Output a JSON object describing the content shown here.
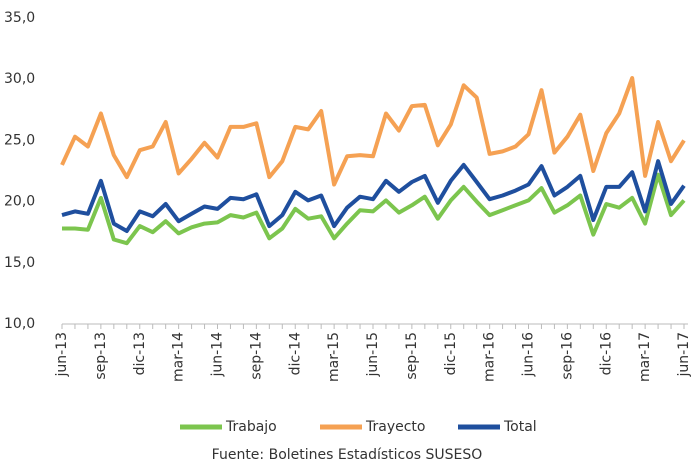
{
  "chart_data": {
    "type": "line",
    "categories": [
      "jun-13",
      null,
      null,
      "sep-13",
      null,
      null,
      "dic-13",
      null,
      null,
      "mar-14",
      null,
      null,
      "jun-14",
      null,
      null,
      "sep-14",
      null,
      null,
      "dic-14",
      null,
      null,
      "mar-15",
      null,
      null,
      "jun-15",
      null,
      null,
      "sep-15",
      null,
      null,
      "dic-15",
      null,
      null,
      "mar-16",
      null,
      null,
      "jun-16",
      null,
      null,
      "sep-16",
      null,
      null,
      "dic-16",
      null,
      null,
      "mar-17",
      null,
      null,
      "jun-17"
    ],
    "series": [
      {
        "name": "Trabajo",
        "color": "#7cc54e",
        "values": [
          17.8,
          17.8,
          17.7,
          20.3,
          16.9,
          16.6,
          18.0,
          17.5,
          18.4,
          17.4,
          17.9,
          18.2,
          18.3,
          18.9,
          18.7,
          19.1,
          17.0,
          17.8,
          19.4,
          18.6,
          18.8,
          17.0,
          18.2,
          19.3,
          19.2,
          20.1,
          19.1,
          19.7,
          20.4,
          18.6,
          20.1,
          21.2,
          20.0,
          18.9,
          19.3,
          19.7,
          20.1,
          21.1,
          19.1,
          19.7,
          20.5,
          17.3,
          19.8,
          19.5,
          20.3,
          18.2,
          22.2,
          18.9,
          20.1
        ]
      },
      {
        "name": "Trayecto",
        "color": "#f5a153",
        "values": [
          23.0,
          25.3,
          24.5,
          27.2,
          23.8,
          22.0,
          24.2,
          24.5,
          26.5,
          22.3,
          23.5,
          24.8,
          23.6,
          26.1,
          26.1,
          26.4,
          22.0,
          23.3,
          26.1,
          25.9,
          27.4,
          21.4,
          23.7,
          23.8,
          23.7,
          27.2,
          25.8,
          27.8,
          27.9,
          24.6,
          26.3,
          29.5,
          28.5,
          23.9,
          24.1,
          24.5,
          25.5,
          29.1,
          24.0,
          25.3,
          27.1,
          22.5,
          25.6,
          27.2,
          30.1,
          22.1,
          26.5,
          23.3,
          25.0
        ]
      },
      {
        "name": "Total",
        "color": "#1f4f9e",
        "values": [
          18.9,
          19.2,
          19.0,
          21.7,
          18.2,
          17.6,
          19.2,
          18.8,
          19.8,
          18.4,
          19.0,
          19.6,
          19.4,
          20.3,
          20.2,
          20.6,
          18.0,
          18.9,
          20.8,
          20.1,
          20.5,
          18.0,
          19.5,
          20.4,
          20.2,
          21.7,
          20.8,
          21.6,
          22.1,
          19.9,
          21.7,
          23.0,
          21.6,
          20.2,
          20.5,
          20.9,
          21.4,
          22.9,
          20.5,
          21.2,
          22.1,
          18.5,
          21.2,
          21.2,
          22.4,
          19.2,
          23.3,
          19.8,
          21.3
        ]
      }
    ],
    "ylim": [
      10,
      35
    ],
    "yticks": [
      {
        "value": 10,
        "label": "10,0"
      },
      {
        "value": 15,
        "label": "15,0"
      },
      {
        "value": 20,
        "label": "20,0"
      },
      {
        "value": 25,
        "label": "25,0"
      },
      {
        "value": 30,
        "label": "30,0"
      },
      {
        "value": 35,
        "label": "35,0"
      }
    ],
    "grid": false,
    "legend": "bottom",
    "source": "Fuente: Boletines Estadísticos SUSESO"
  }
}
